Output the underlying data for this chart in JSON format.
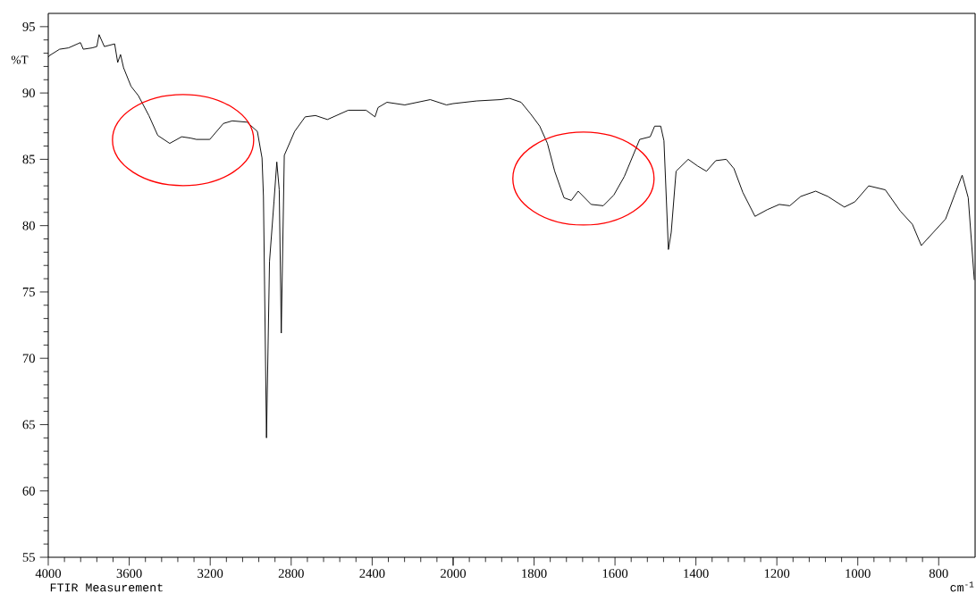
{
  "chart_data": [
    {
      "type": "line",
      "ylabel": "%T",
      "annotations": [
        "FTIR Measurement"
      ],
      "xlim": [
        4000,
        2000
      ],
      "ylim": [
        55,
        96
      ],
      "xticks": [
        4000,
        3600,
        3200,
        2800,
        2400,
        2000
      ],
      "yticks": [
        55,
        60,
        65,
        70,
        75,
        80,
        85,
        90,
        95
      ],
      "series": [
        {
          "color": "#000000",
          "x": [
            4000,
            3996,
            3944,
            3900,
            3841,
            3827,
            3783,
            3760,
            3749,
            3723,
            3672,
            3657,
            3643,
            3628,
            3591,
            3555,
            3503,
            3459,
            3400,
            3341,
            3297,
            3268,
            3202,
            3135,
            3091,
            3018,
            2967,
            2944,
            2937,
            2922,
            2907,
            2885,
            2871,
            2859,
            2849,
            2834,
            2783,
            2731,
            2680,
            2621,
            2518,
            2430,
            2386,
            2371,
            2327,
            2239,
            2113,
            2033,
            2000
          ],
          "values": [
            92.7,
            92.8,
            93.3,
            93.4,
            93.8,
            93.3,
            93.4,
            93.5,
            94.4,
            93.5,
            93.7,
            92.3,
            92.9,
            91.9,
            90.5,
            89.8,
            88.3,
            86.8,
            86.2,
            86.7,
            86.6,
            86.5,
            86.5,
            87.7,
            87.9,
            87.8,
            87.1,
            85.1,
            82.2,
            64.0,
            77.3,
            81.8,
            84.8,
            82.7,
            71.9,
            85.3,
            87.1,
            88.2,
            88.3,
            88.0,
            88.7,
            88.7,
            88.2,
            88.9,
            89.3,
            89.1,
            89.5,
            89.1,
            89.2
          ]
        }
      ]
    },
    {
      "type": "line",
      "xlabel": "cm$^{-1}$",
      "tick_labels": "x",
      "xlim": [
        2000,
        710
      ],
      "ylim": [
        55,
        96
      ],
      "xticks": [
        {
          "value": 2000,
          "label": null
        },
        1800,
        1600,
        1400,
        1200,
        1000,
        800
      ],
      "series": [
        {
          "color": "#000000",
          "x": [
            2000,
            1942,
            1883,
            1861,
            1832,
            1808,
            1786,
            1767,
            1749,
            1726,
            1708,
            1691,
            1659,
            1629,
            1603,
            1577,
            1539,
            1513,
            1502,
            1487,
            1479,
            1468,
            1461,
            1449,
            1419,
            1396,
            1374,
            1351,
            1325,
            1306,
            1284,
            1254,
            1224,
            1194,
            1168,
            1141,
            1104,
            1074,
            1033,
            1007,
            973,
            932,
            895,
            865,
            843,
            813,
            783,
            761,
            742,
            727,
            712
          ],
          "values": [
            89.2,
            89.4,
            89.5,
            89.6,
            89.3,
            88.4,
            87.5,
            86.2,
            84.1,
            82.1,
            81.9,
            82.6,
            81.6,
            81.5,
            82.3,
            83.7,
            86.5,
            86.7,
            87.5,
            87.5,
            86.4,
            78.2,
            79.5,
            84.1,
            85.0,
            84.5,
            84.1,
            84.9,
            85.0,
            84.3,
            82.5,
            80.7,
            81.2,
            81.6,
            81.5,
            82.2,
            82.6,
            82.2,
            81.4,
            81.8,
            83.0,
            82.7,
            81.1,
            80.1,
            78.5,
            79.5,
            80.5,
            82.3,
            83.8,
            82.1,
            75.9
          ]
        }
      ]
    }
  ]
}
